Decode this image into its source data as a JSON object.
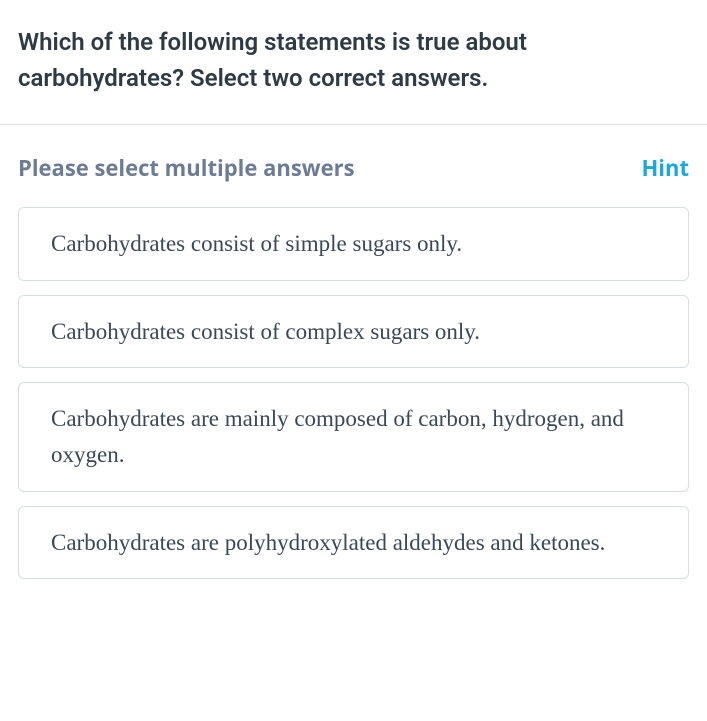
{
  "question": {
    "text": "Which of the following statements is true about carbohydrates? Select two correct answers.",
    "text_color": "#2d3b45",
    "font_size": 24,
    "font_weight": 600
  },
  "instruction": {
    "text": "Please select multiple answers",
    "text_color": "#6b7c93",
    "font_size": 22,
    "font_weight": 700
  },
  "hint": {
    "label": "Hint",
    "text_color": "#1ca8dd",
    "font_size": 22,
    "font_weight": 700
  },
  "options": [
    {
      "text": "Carbohydrates consist of simple sugars only."
    },
    {
      "text": "Carbohydrates consist of complex sugars only."
    },
    {
      "text": "Carbohydrates are mainly composed of carbon, hydrogen, and oxygen."
    },
    {
      "text": "Carbohydrates are polyhydroxylated aldehydes and ketones."
    }
  ],
  "option_styling": {
    "border_color": "#d6dde5",
    "border_radius": 6,
    "text_color": "#3a4857",
    "font_family": "Georgia, serif",
    "font_size": 23,
    "background_color": "#ffffff"
  },
  "divider_color": "#e1e5e9",
  "page_background": "#ffffff"
}
